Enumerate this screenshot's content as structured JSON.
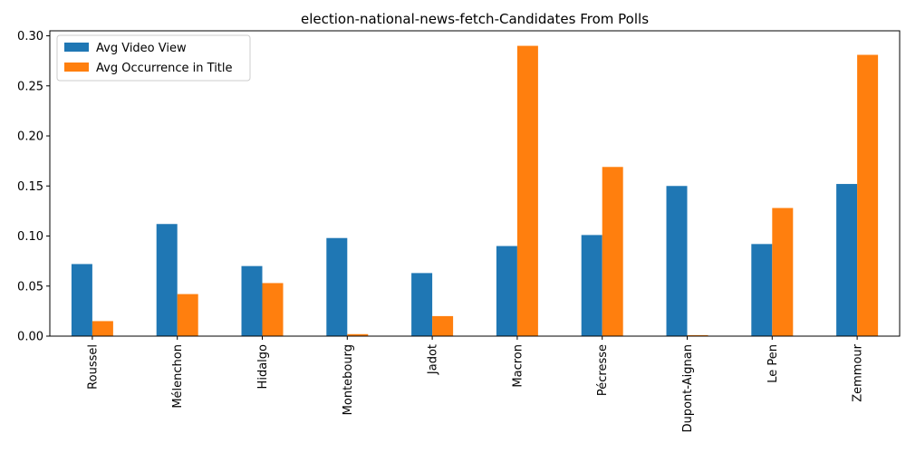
{
  "chart_data": {
    "type": "bar",
    "title": "election-national-news-fetch-Candidates From Polls",
    "xlabel": "",
    "ylabel": "",
    "categories": [
      "Roussel",
      "Mélenchon",
      "Hidalgo",
      "Montebourg",
      "Jadot",
      "Macron",
      "Pécresse",
      "Dupont-Aignan",
      "Le Pen",
      "Zemmour"
    ],
    "series": [
      {
        "name": "Avg Video View",
        "color": "#1f77b4",
        "values": [
          0.072,
          0.112,
          0.07,
          0.098,
          0.063,
          0.09,
          0.101,
          0.15,
          0.092,
          0.152
        ]
      },
      {
        "name": "Avg Occurrence in Title",
        "color": "#ff7f0e",
        "values": [
          0.015,
          0.042,
          0.053,
          0.002,
          0.02,
          0.29,
          0.169,
          0.001,
          0.128,
          0.281
        ]
      }
    ],
    "ylim": [
      0,
      0.305
    ],
    "yticks": [
      "0.00",
      "0.05",
      "0.10",
      "0.15",
      "0.20",
      "0.25",
      "0.30"
    ],
    "legend_position": "top-left",
    "grid": false
  }
}
